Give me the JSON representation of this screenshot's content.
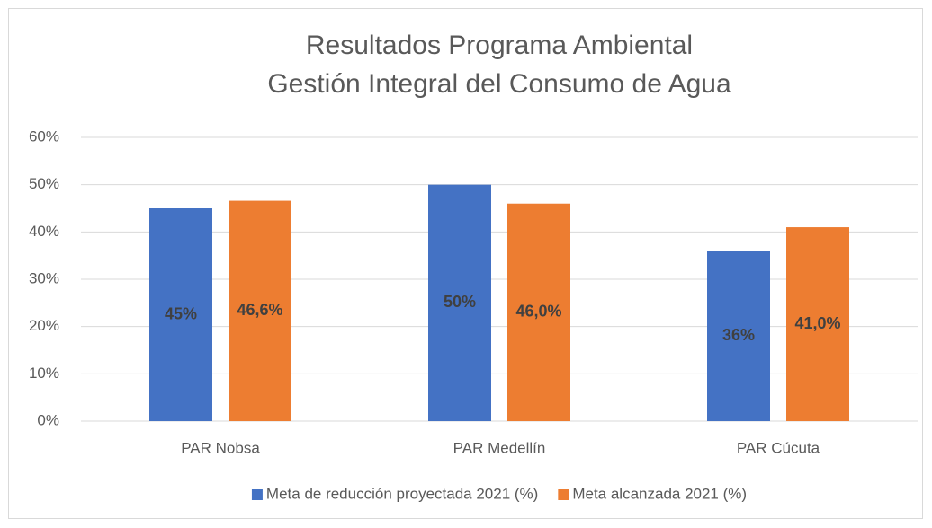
{
  "chart_data": {
    "type": "bar",
    "title": [
      "Resultados Programa Ambiental",
      "Gestión Integral del Consumo de Agua"
    ],
    "categories": [
      "PAR Nobsa",
      "PAR Medellín",
      "PAR Cúcuta"
    ],
    "series": [
      {
        "name": "Meta de reducción proyectada 2021 (%)",
        "color": "#4472c4",
        "values": [
          45,
          50,
          36
        ],
        "value_labels": [
          "45%",
          "50%",
          "36%"
        ]
      },
      {
        "name": "Meta alcanzada 2021 (%)",
        "color": "#ed7d31",
        "values": [
          46.6,
          46.0,
          41.0
        ],
        "value_labels": [
          "46,6%",
          "46,0%",
          "41,0%"
        ]
      }
    ],
    "ylim": [
      0,
      60
    ],
    "yticks": [
      {
        "value": 0,
        "label": "0%"
      },
      {
        "value": 10,
        "label": "10%"
      },
      {
        "value": 20,
        "label": "20%"
      },
      {
        "value": 30,
        "label": "30%"
      },
      {
        "value": 40,
        "label": "40%"
      },
      {
        "value": 50,
        "label": "50%"
      },
      {
        "value": 60,
        "label": "60%"
      }
    ],
    "grid": true,
    "legend": "bottom"
  }
}
